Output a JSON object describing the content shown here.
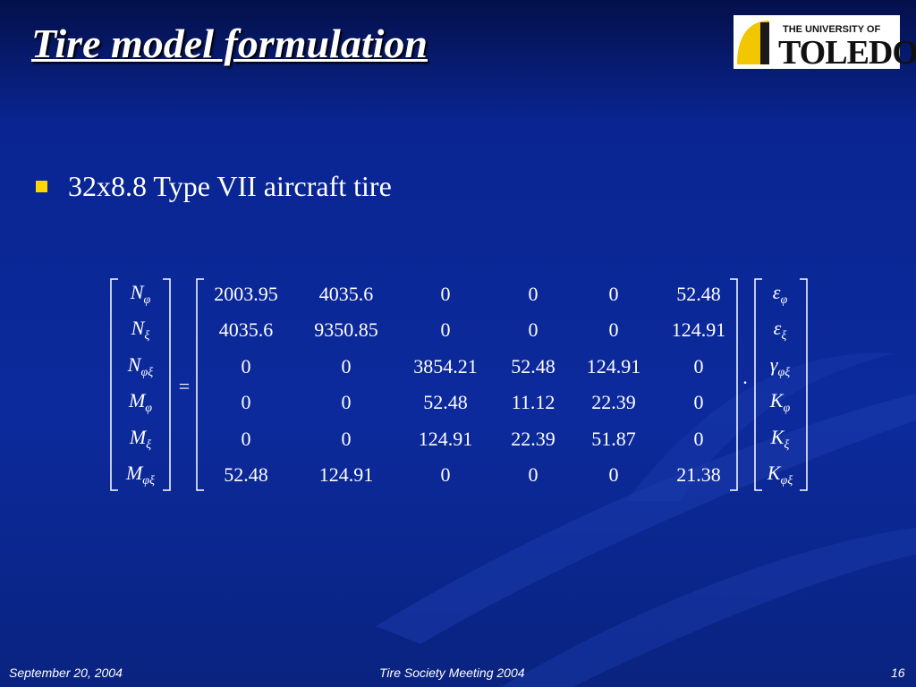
{
  "header": {
    "title": "Tire model formulation",
    "logo": {
      "line1": "THE UNIVERSITY OF",
      "line2": "TOLEDO"
    }
  },
  "bullets": [
    "32x8.8 Type VII aircraft tire"
  ],
  "equation": {
    "left": [
      {
        "symbol": "N",
        "sub": "φ"
      },
      {
        "symbol": "N",
        "sub": "ξ"
      },
      {
        "symbol": "N",
        "sub": "φξ"
      },
      {
        "symbol": "M",
        "sub": "φ"
      },
      {
        "symbol": "M",
        "sub": "ξ"
      },
      {
        "symbol": "M",
        "sub": "φξ"
      }
    ],
    "equals": "=",
    "matrix": [
      [
        2003.95,
        4035.6,
        0,
        0,
        0,
        52.48
      ],
      [
        4035.6,
        9350.85,
        0,
        0,
        0,
        124.91
      ],
      [
        0,
        0,
        3854.21,
        52.48,
        124.91,
        0
      ],
      [
        0,
        0,
        52.48,
        11.12,
        22.39,
        0
      ],
      [
        0,
        0,
        124.91,
        22.39,
        51.87,
        0
      ],
      [
        52.48,
        124.91,
        0,
        0,
        0,
        21.38
      ]
    ],
    "dot": "·",
    "right": [
      {
        "symbol": "ε",
        "sub": "φ"
      },
      {
        "symbol": "ε",
        "sub": "ξ"
      },
      {
        "symbol": "γ",
        "sub": "φξ"
      },
      {
        "symbol": "K",
        "sub": "φ"
      },
      {
        "symbol": "K",
        "sub": "ξ"
      },
      {
        "symbol": "K",
        "sub": "φξ"
      }
    ]
  },
  "footer": {
    "date": "September 20, 2004",
    "event": "Tire Society Meeting 2004",
    "page": "16"
  }
}
